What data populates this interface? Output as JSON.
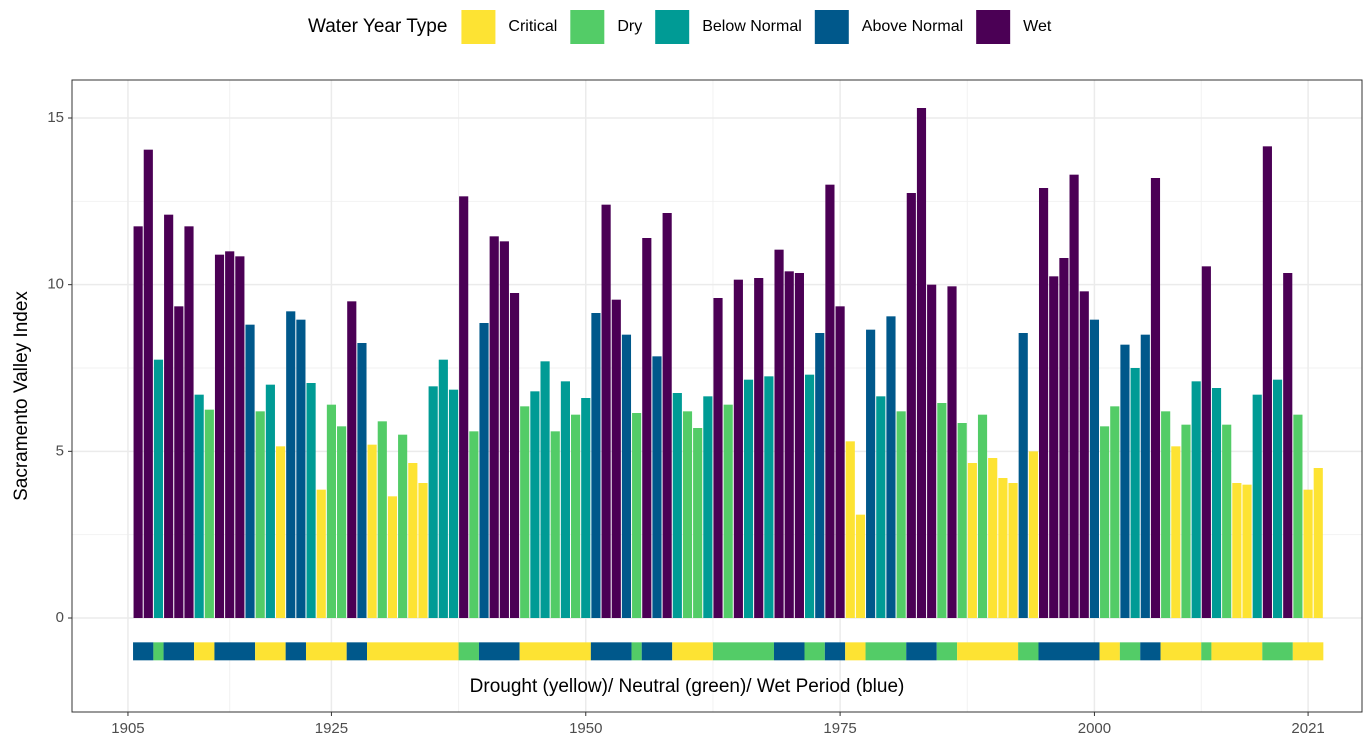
{
  "chart_data": {
    "type": "bar",
    "y_label": "Sacramento Valley Index",
    "legend": {
      "title": "Water Year Type",
      "position": "top",
      "items": [
        {
          "name": "Critical",
          "color": "#fde333"
        },
        {
          "name": "Dry",
          "color": "#53cc67"
        },
        {
          "name": "Below Normal",
          "color": "#009b95"
        },
        {
          "name": "Above Normal",
          "color": "#00588b"
        },
        {
          "name": "Wet",
          "color": "#4b0055"
        }
      ]
    },
    "x": [
      1906,
      1907,
      1908,
      1909,
      1910,
      1911,
      1912,
      1913,
      1914,
      1915,
      1916,
      1917,
      1918,
      1919,
      1920,
      1921,
      1922,
      1923,
      1924,
      1925,
      1926,
      1927,
      1928,
      1929,
      1930,
      1931,
      1932,
      1933,
      1934,
      1935,
      1936,
      1937,
      1938,
      1939,
      1940,
      1941,
      1942,
      1943,
      1944,
      1945,
      1946,
      1947,
      1948,
      1949,
      1950,
      1951,
      1952,
      1953,
      1954,
      1955,
      1956,
      1957,
      1958,
      1959,
      1960,
      1961,
      1962,
      1963,
      1964,
      1965,
      1966,
      1967,
      1968,
      1969,
      1970,
      1971,
      1972,
      1973,
      1974,
      1975,
      1976,
      1977,
      1978,
      1979,
      1980,
      1981,
      1982,
      1983,
      1984,
      1985,
      1986,
      1987,
      1988,
      1989,
      1990,
      1991,
      1992,
      1993,
      1994,
      1995,
      1996,
      1997,
      1998,
      1999,
      2000,
      2001,
      2002,
      2003,
      2004,
      2005,
      2006,
      2007,
      2008,
      2009,
      2010,
      2011,
      2012,
      2013,
      2014,
      2015,
      2016,
      2017,
      2018,
      2019,
      2020,
      2021,
      2022
    ],
    "values": [
      11.75,
      14.05,
      7.75,
      12.1,
      9.35,
      11.75,
      6.7,
      6.25,
      10.9,
      11.0,
      10.85,
      8.8,
      6.2,
      7.0,
      5.15,
      9.2,
      8.95,
      7.05,
      3.85,
      6.4,
      5.75,
      9.5,
      8.25,
      5.2,
      5.9,
      3.65,
      5.5,
      4.65,
      4.05,
      6.95,
      7.75,
      6.85,
      12.65,
      5.6,
      8.85,
      11.45,
      11.3,
      9.75,
      6.35,
      6.8,
      7.7,
      5.6,
      7.1,
      6.1,
      6.6,
      9.15,
      12.4,
      9.55,
      8.5,
      6.15,
      11.4,
      7.85,
      12.15,
      6.75,
      6.2,
      5.7,
      6.65,
      9.6,
      6.4,
      10.15,
      7.15,
      10.2,
      7.25,
      11.05,
      10.4,
      10.35,
      7.3,
      8.55,
      13.0,
      9.35,
      5.3,
      3.1,
      8.65,
      6.65,
      9.05,
      6.2,
      12.75,
      15.3,
      10.0,
      6.45,
      9.95,
      5.85,
      4.65,
      6.1,
      4.8,
      4.2,
      4.05,
      8.55,
      5.0,
      12.9,
      10.25,
      10.8,
      13.3,
      9.8,
      8.95,
      5.75,
      6.35,
      8.2,
      7.5,
      8.5,
      13.2,
      6.2,
      5.15,
      5.8,
      7.1,
      10.55,
      6.9,
      5.8,
      4.05,
      4.0,
      6.7,
      14.15,
      7.15,
      10.35,
      6.1,
      3.85,
      4.5
    ],
    "bar_colors": [
      "#4b0055",
      "#4b0055",
      "#009b95",
      "#4b0055",
      "#4b0055",
      "#4b0055",
      "#009b95",
      "#53cc67",
      "#4b0055",
      "#4b0055",
      "#4b0055",
      "#00588b",
      "#53cc67",
      "#009b95",
      "#fde333",
      "#00588b",
      "#00588b",
      "#009b95",
      "#fde333",
      "#53cc67",
      "#53cc67",
      "#4b0055",
      "#00588b",
      "#fde333",
      "#53cc67",
      "#fde333",
      "#53cc67",
      "#fde333",
      "#fde333",
      "#009b95",
      "#009b95",
      "#009b95",
      "#4b0055",
      "#53cc67",
      "#00588b",
      "#4b0055",
      "#4b0055",
      "#4b0055",
      "#53cc67",
      "#009b95",
      "#009b95",
      "#53cc67",
      "#009b95",
      "#53cc67",
      "#009b95",
      "#00588b",
      "#4b0055",
      "#4b0055",
      "#00588b",
      "#53cc67",
      "#4b0055",
      "#00588b",
      "#4b0055",
      "#009b95",
      "#53cc67",
      "#53cc67",
      "#009b95",
      "#4b0055",
      "#53cc67",
      "#4b0055",
      "#009b95",
      "#4b0055",
      "#009b95",
      "#4b0055",
      "#4b0055",
      "#4b0055",
      "#009b95",
      "#00588b",
      "#4b0055",
      "#4b0055",
      "#fde333",
      "#fde333",
      "#00588b",
      "#009b95",
      "#00588b",
      "#53cc67",
      "#4b0055",
      "#4b0055",
      "#4b0055",
      "#53cc67",
      "#4b0055",
      "#53cc67",
      "#fde333",
      "#53cc67",
      "#fde333",
      "#fde333",
      "#fde333",
      "#00588b",
      "#fde333",
      "#4b0055",
      "#4b0055",
      "#4b0055",
      "#4b0055",
      "#4b0055",
      "#00588b",
      "#53cc67",
      "#53cc67",
      "#00588b",
      "#009b95",
      "#00588b",
      "#4b0055",
      "#53cc67",
      "#fde333",
      "#53cc67",
      "#009b95",
      "#4b0055",
      "#009b95",
      "#53cc67",
      "#fde333",
      "#fde333",
      "#009b95",
      "#4b0055",
      "#009b95",
      "#4b0055",
      "#53cc67",
      "#fde333",
      "#fde333"
    ],
    "period_band": {
      "label": "Drought (yellow)/ Neutral (green)/ Wet Period (blue)",
      "y": -1,
      "periods": [
        {
          "start": 1906,
          "end": 1907,
          "color": "#00588b"
        },
        {
          "start": 1908,
          "end": 1908,
          "color": "#53cc67"
        },
        {
          "start": 1909,
          "end": 1911,
          "color": "#00588b"
        },
        {
          "start": 1912,
          "end": 1913,
          "color": "#fde333"
        },
        {
          "start": 1914,
          "end": 1917,
          "color": "#00588b"
        },
        {
          "start": 1918,
          "end": 1920,
          "color": "#fde333"
        },
        {
          "start": 1921,
          "end": 1922,
          "color": "#00588b"
        },
        {
          "start": 1923,
          "end": 1926,
          "color": "#fde333"
        },
        {
          "start": 1927,
          "end": 1928,
          "color": "#00588b"
        },
        {
          "start": 1929,
          "end": 1937,
          "color": "#fde333"
        },
        {
          "start": 1938,
          "end": 1939,
          "color": "#53cc67"
        },
        {
          "start": 1940,
          "end": 1943,
          "color": "#00588b"
        },
        {
          "start": 1944,
          "end": 1950,
          "color": "#fde333"
        },
        {
          "start": 1951,
          "end": 1954,
          "color": "#00588b"
        },
        {
          "start": 1955,
          "end": 1955,
          "color": "#53cc67"
        },
        {
          "start": 1956,
          "end": 1958,
          "color": "#00588b"
        },
        {
          "start": 1959,
          "end": 1962,
          "color": "#fde333"
        },
        {
          "start": 1963,
          "end": 1968,
          "color": "#53cc67"
        },
        {
          "start": 1969,
          "end": 1971,
          "color": "#00588b"
        },
        {
          "start": 1972,
          "end": 1973,
          "color": "#53cc67"
        },
        {
          "start": 1974,
          "end": 1975,
          "color": "#00588b"
        },
        {
          "start": 1976,
          "end": 1977,
          "color": "#fde333"
        },
        {
          "start": 1978,
          "end": 1981,
          "color": "#53cc67"
        },
        {
          "start": 1982,
          "end": 1984,
          "color": "#00588b"
        },
        {
          "start": 1985,
          "end": 1986,
          "color": "#53cc67"
        },
        {
          "start": 1987,
          "end": 1992,
          "color": "#fde333"
        },
        {
          "start": 1993,
          "end": 1994,
          "color": "#53cc67"
        },
        {
          "start": 1995,
          "end": 2000,
          "color": "#00588b"
        },
        {
          "start": 2001,
          "end": 2002,
          "color": "#fde333"
        },
        {
          "start": 2003,
          "end": 2004,
          "color": "#53cc67"
        },
        {
          "start": 2005,
          "end": 2006,
          "color": "#00588b"
        },
        {
          "start": 2007,
          "end": 2010,
          "color": "#fde333"
        },
        {
          "start": 2011,
          "end": 2011,
          "color": "#53cc67"
        },
        {
          "start": 2012,
          "end": 2016,
          "color": "#fde333"
        },
        {
          "start": 2017,
          "end": 2019,
          "color": "#53cc67"
        },
        {
          "start": 2020,
          "end": 2022,
          "color": "#fde333"
        }
      ]
    },
    "xlim": [
      1899.5,
      2026.3
    ],
    "xticks": [
      1905,
      1925,
      1950,
      1975,
      2000,
      2021
    ],
    "x_minor_ticks": [
      1915,
      1937.5,
      1962.5,
      1987.5,
      2010.5
    ],
    "ylim": [
      -2.82,
      16.14
    ],
    "yticks": [
      0,
      5,
      10,
      15
    ],
    "y_minor_ticks": [
      2.5,
      7.5,
      12.5
    ],
    "grid": true
  }
}
